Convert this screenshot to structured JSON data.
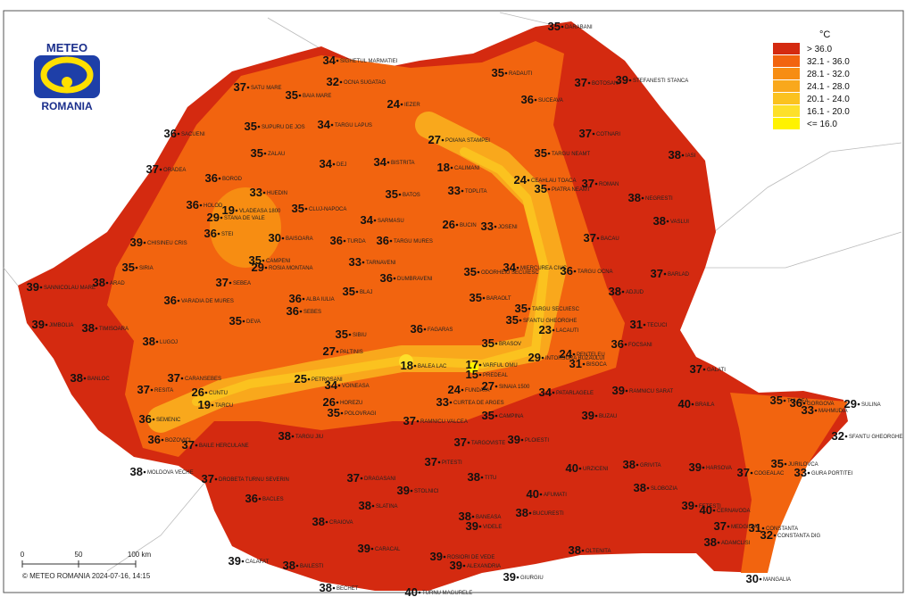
{
  "logo": {
    "top": "METEO",
    "bottom": "ROMANIA"
  },
  "legend": {
    "unit": "°C",
    "classes": [
      {
        "label": "> 36.0",
        "color": "#d42a10"
      },
      {
        "label": "32.1 - 36.0",
        "color": "#f2640f"
      },
      {
        "label": "28.1 - 32.0",
        "color": "#f78d12"
      },
      {
        "label": "24.1 - 28.0",
        "color": "#f9a81c"
      },
      {
        "label": "20.1 - 24.0",
        "color": "#fbc21f"
      },
      {
        "label": "16.1 - 20.0",
        "color": "#fde02a"
      },
      {
        "label": "<= 16.0",
        "color": "#fff200"
      }
    ]
  },
  "stations": [
    {
      "value": 35,
      "name": "DARABANI"
    },
    {
      "value": 35,
      "name": "RADAUTI"
    },
    {
      "value": 37,
      "name": "BOTOSANI"
    },
    {
      "value": 39,
      "name": "STEFANESTI STANCA"
    },
    {
      "value": 36,
      "name": "SUCEAVA"
    },
    {
      "value": 34,
      "name": "SIGHETUL MARMATIEI"
    },
    {
      "value": 32,
      "name": "OCNA SUGATAG"
    },
    {
      "value": 35,
      "name": "BAIA MARE"
    },
    {
      "value": 37,
      "name": "SATU MARE"
    },
    {
      "value": 24,
      "name": "IEZER"
    },
    {
      "value": 34,
      "name": "TARGU LAPUS"
    },
    {
      "value": 35,
      "name": "SUPURU DE JOS"
    },
    {
      "value": 36,
      "name": "SACUENI"
    },
    {
      "value": 37,
      "name": "COTNARI"
    },
    {
      "value": 27,
      "name": "POIANA STAMPEI"
    },
    {
      "value": 35,
      "name": "TARGU NEAMT"
    },
    {
      "value": 35,
      "name": "ZALAU"
    },
    {
      "value": 34,
      "name": "DEJ"
    },
    {
      "value": 34,
      "name": "BISTRITA"
    },
    {
      "value": 18,
      "name": "CALIMANI"
    },
    {
      "value": 38,
      "name": "IASI"
    },
    {
      "value": 37,
      "name": "ORADEA"
    },
    {
      "value": 36,
      "name": "BOROD"
    },
    {
      "value": 19,
      "name": "VLADEASA 1800"
    },
    {
      "value": 33,
      "name": "HUEDIN"
    },
    {
      "value": 35,
      "name": "BATOS"
    },
    {
      "value": 33,
      "name": "TOPLITA"
    },
    {
      "value": 24,
      "name": "CEAHLAU TOACA"
    },
    {
      "value": 35,
      "name": "PIATRA NEAMT"
    },
    {
      "value": 37,
      "name": "ROMAN"
    },
    {
      "value": 38,
      "name": "NEGRESTI"
    },
    {
      "value": 36,
      "name": "HOLOD"
    },
    {
      "value": 29,
      "name": "STANA DE VALE"
    },
    {
      "value": 35,
      "name": "CLUJ-NAPOCA"
    },
    {
      "value": 34,
      "name": "SARMASU"
    },
    {
      "value": 26,
      "name": "BUCIN"
    },
    {
      "value": 33,
      "name": "JOSENI"
    },
    {
      "value": 38,
      "name": "VASLUI"
    },
    {
      "value": 36,
      "name": "STEI"
    },
    {
      "value": 30,
      "name": "BAISOARA"
    },
    {
      "value": 36,
      "name": "TURDA"
    },
    {
      "value": 36,
      "name": "TARGU MURES"
    },
    {
      "value": 37,
      "name": "BACAU"
    },
    {
      "value": 39,
      "name": "CHISINEU CRIS"
    },
    {
      "value": 35,
      "name": "CAMPENI"
    },
    {
      "value": 29,
      "name": "ROSIA MONTANA"
    },
    {
      "value": 33,
      "name": "TARNAVENI"
    },
    {
      "value": 34,
      "name": "MIERCUREA CIUC"
    },
    {
      "value": 35,
      "name": "ODORHEIU SECUIESC"
    },
    {
      "value": 36,
      "name": "TARGU OCNA"
    },
    {
      "value": 37,
      "name": "BARLAD"
    },
    {
      "value": 39,
      "name": "SANNICOLAU MARE"
    },
    {
      "value": 38,
      "name": "ARAD"
    },
    {
      "value": 35,
      "name": "SIRIA"
    },
    {
      "value": 36,
      "name": "VARADIA DE MURES"
    },
    {
      "value": 37,
      "name": "SEBEA"
    },
    {
      "value": 36,
      "name": "ALBA IULIA"
    },
    {
      "value": 36,
      "name": "SEBES"
    },
    {
      "value": 35,
      "name": "BLAJ"
    },
    {
      "value": 36,
      "name": "DUMBRAVENI"
    },
    {
      "value": 35,
      "name": "BARAOLT"
    },
    {
      "value": 35,
      "name": "TARGU SECUIESC"
    },
    {
      "value": 35,
      "name": "SFANTU GHEORGHE"
    },
    {
      "value": 38,
      "name": "ADJUD"
    },
    {
      "value": 38,
      "name": "TIMISOARA"
    },
    {
      "value": 39,
      "name": "JIMBOLIA"
    },
    {
      "value": 35,
      "name": "DEVA"
    },
    {
      "value": 36,
      "name": "FAGARAS"
    },
    {
      "value": 23,
      "name": "LACAUTI"
    },
    {
      "value": 31,
      "name": "TECUCI"
    },
    {
      "value": 38,
      "name": "LUGOJ"
    },
    {
      "value": 35,
      "name": "SIBIU"
    },
    {
      "value": 35,
      "name": "BRASOV"
    },
    {
      "value": 36,
      "name": "FOCSANI"
    },
    {
      "value": 27,
      "name": "PALTINIS"
    },
    {
      "value": 18,
      "name": "BALEA LAC"
    },
    {
      "value": 29,
      "name": "INTORSURA BUZAULUI"
    },
    {
      "value": 24,
      "name": "PENTELEU"
    },
    {
      "value": 31,
      "name": "BISOCA"
    },
    {
      "value": 37,
      "name": "GALATI"
    },
    {
      "value": 38,
      "name": "BANLOC"
    },
    {
      "value": 37,
      "name": "CARANSEBES"
    },
    {
      "value": 17,
      "name": "VARFUL OMU"
    },
    {
      "value": 15,
      "name": "PREDEAL"
    },
    {
      "value": 25,
      "name": "PETROSANI"
    },
    {
      "value": 37,
      "name": "RESITA"
    },
    {
      "value": 26,
      "name": "CUNTU"
    },
    {
      "value": 24,
      "name": "FUNDATA"
    },
    {
      "value": 27,
      "name": "SINAIA 1500"
    },
    {
      "value": 34,
      "name": "PATARLAGELE"
    },
    {
      "value": 39,
      "name": "RAMNICU SARAT"
    },
    {
      "value": 40,
      "name": "BRAILA"
    },
    {
      "value": 35,
      "name": "TULCEA"
    },
    {
      "value": 36,
      "name": "GORGOVA"
    },
    {
      "value": 29,
      "name": "SULINA"
    },
    {
      "value": 36,
      "name": "SEMENIC"
    },
    {
      "value": 34,
      "name": "VOINEASA"
    },
    {
      "value": 19,
      "name": "TARCU"
    },
    {
      "value": 26,
      "name": "HOREZU"
    },
    {
      "value": 35,
      "name": "POLOVRAGI"
    },
    {
      "value": 33,
      "name": "CURTEA DE ARGES"
    },
    {
      "value": 35,
      "name": "CAMPINA"
    },
    {
      "value": 39,
      "name": "BUZAU"
    },
    {
      "value": 33,
      "name": "MAHMUDIA"
    },
    {
      "value": 32,
      "name": "SFANTU GHEORGHE"
    },
    {
      "value": 38,
      "name": "TARGU JIU"
    },
    {
      "value": 36,
      "name": "BOZOVICI"
    },
    {
      "value": 37,
      "name": "BAILE HERCULANE"
    },
    {
      "value": 37,
      "name": "RAMNICU VALCEA"
    },
    {
      "value": 37,
      "name": "PITESTI"
    },
    {
      "value": 37,
      "name": "TARGOVISTE"
    },
    {
      "value": 39,
      "name": "PLOIESTI"
    },
    {
      "value": 40,
      "name": "URZICENI"
    },
    {
      "value": 38,
      "name": "GRIVITA"
    },
    {
      "value": 35,
      "name": "JURILOVCA"
    },
    {
      "value": 33,
      "name": "GURA PORTITEI"
    },
    {
      "value": 38,
      "name": "MOLDOVA VECHE"
    },
    {
      "value": 37,
      "name": "DROBETA TURNU SEVERIN"
    },
    {
      "value": 37,
      "name": "DRAGASANI"
    },
    {
      "value": 39,
      "name": "STOLNICI"
    },
    {
      "value": 38,
      "name": "TITU"
    },
    {
      "value": 38,
      "name": "SLOBOZIA"
    },
    {
      "value": 39,
      "name": "HARSOVA"
    },
    {
      "value": 37,
      "name": "COGEALAC"
    },
    {
      "value": 36,
      "name": "BACLES"
    },
    {
      "value": 38,
      "name": "SLATINA"
    },
    {
      "value": 38,
      "name": "BANEASA"
    },
    {
      "value": 40,
      "name": "AFUMATI"
    },
    {
      "value": 38,
      "name": "BUCURESTI"
    },
    {
      "value": 39,
      "name": "FETESTI"
    },
    {
      "value": 40,
      "name": "CERNAVODA"
    },
    {
      "value": 38,
      "name": "CRAIOVA"
    },
    {
      "value": 39,
      "name": "VIDELE"
    },
    {
      "value": 31,
      "name": "CONSTANTA"
    },
    {
      "value": 32,
      "name": "CONSTANTA DIG"
    },
    {
      "value": 39,
      "name": "CARACAL"
    },
    {
      "value": 39,
      "name": "ROSIORI DE VEDE"
    },
    {
      "value": 38,
      "name": "OLTENITA"
    },
    {
      "value": 39,
      "name": "CALAFAT"
    },
    {
      "value": 38,
      "name": "BAILESTI"
    },
    {
      "value": 39,
      "name": "ALEXANDRIA"
    },
    {
      "value": 39,
      "name": "GIURGIU"
    },
    {
      "value": 30,
      "name": "MANGALIA"
    },
    {
      "value": 38,
      "name": "BECHET"
    },
    {
      "value": 40,
      "name": "TURNU MAGURELE"
    },
    {
      "value": 38,
      "name": "ADAMCLISI"
    },
    {
      "value": 37,
      "name": "MEDGIDIA"
    }
  ],
  "scale": {
    "labels": [
      "0",
      "50",
      "100 km"
    ]
  },
  "footer": "© METEO ROMANIA 2024-07-16, 14:15"
}
